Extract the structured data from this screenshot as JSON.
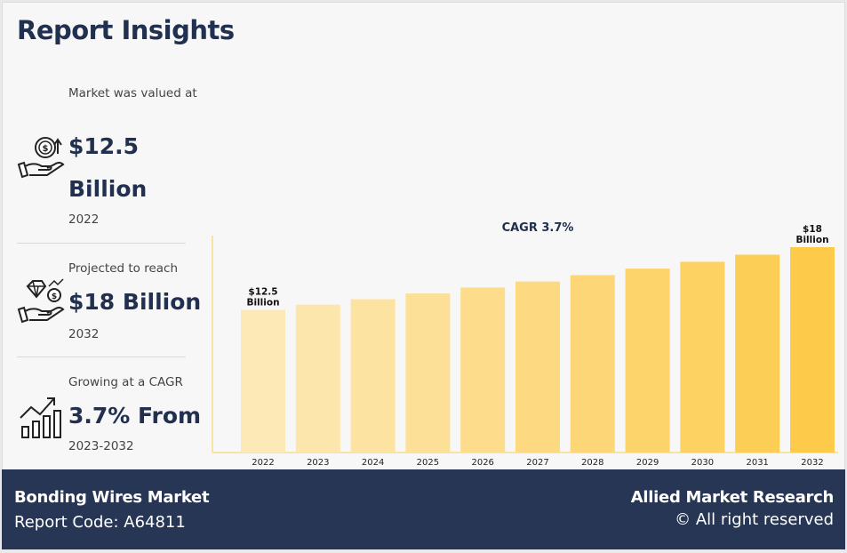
{
  "header": {
    "title": "Report Insights"
  },
  "stats": [
    {
      "label": "Market was valued at",
      "value": "$12.5 Billion",
      "sub": "2022",
      "icon": "money-hand-icon"
    },
    {
      "label": "Projected to reach",
      "value": "$18 Billion",
      "sub": "2032",
      "icon": "diamond-hand-icon"
    },
    {
      "label": "Growing at a CAGR",
      "value": "3.7% From",
      "sub": "2023-2032",
      "icon": "growth-chart-icon"
    }
  ],
  "chart_data": {
    "type": "bar",
    "title": "CAGR 3.7%",
    "categories": [
      "2022",
      "2023",
      "2024",
      "2025",
      "2026",
      "2027",
      "2028",
      "2029",
      "2030",
      "2031",
      "2032"
    ],
    "values": [
      12.5,
      12.96,
      13.44,
      13.94,
      14.46,
      14.99,
      15.55,
      16.12,
      16.72,
      17.34,
      18.0
    ],
    "annotations": [
      {
        "category": "2022",
        "line1": "$12.5",
        "line2": "Billion"
      },
      {
        "category": "2032",
        "line1": "$18",
        "line2": "Billion"
      }
    ],
    "colors": [
      "#fde9b5",
      "#fde6ab",
      "#fde3a1",
      "#fde097",
      "#fddd8c",
      "#fdda82",
      "#fdd777",
      "#fdd46c",
      "#fdd162",
      "#fdce56",
      "#fdcb49"
    ],
    "axis_color": "#f7e3a4",
    "grid": false
  },
  "footer": {
    "market": "Bonding Wires Market",
    "report_code": "Report Code: A64811",
    "brand": "Allied Market Research",
    "rights": "© All right reserved"
  }
}
